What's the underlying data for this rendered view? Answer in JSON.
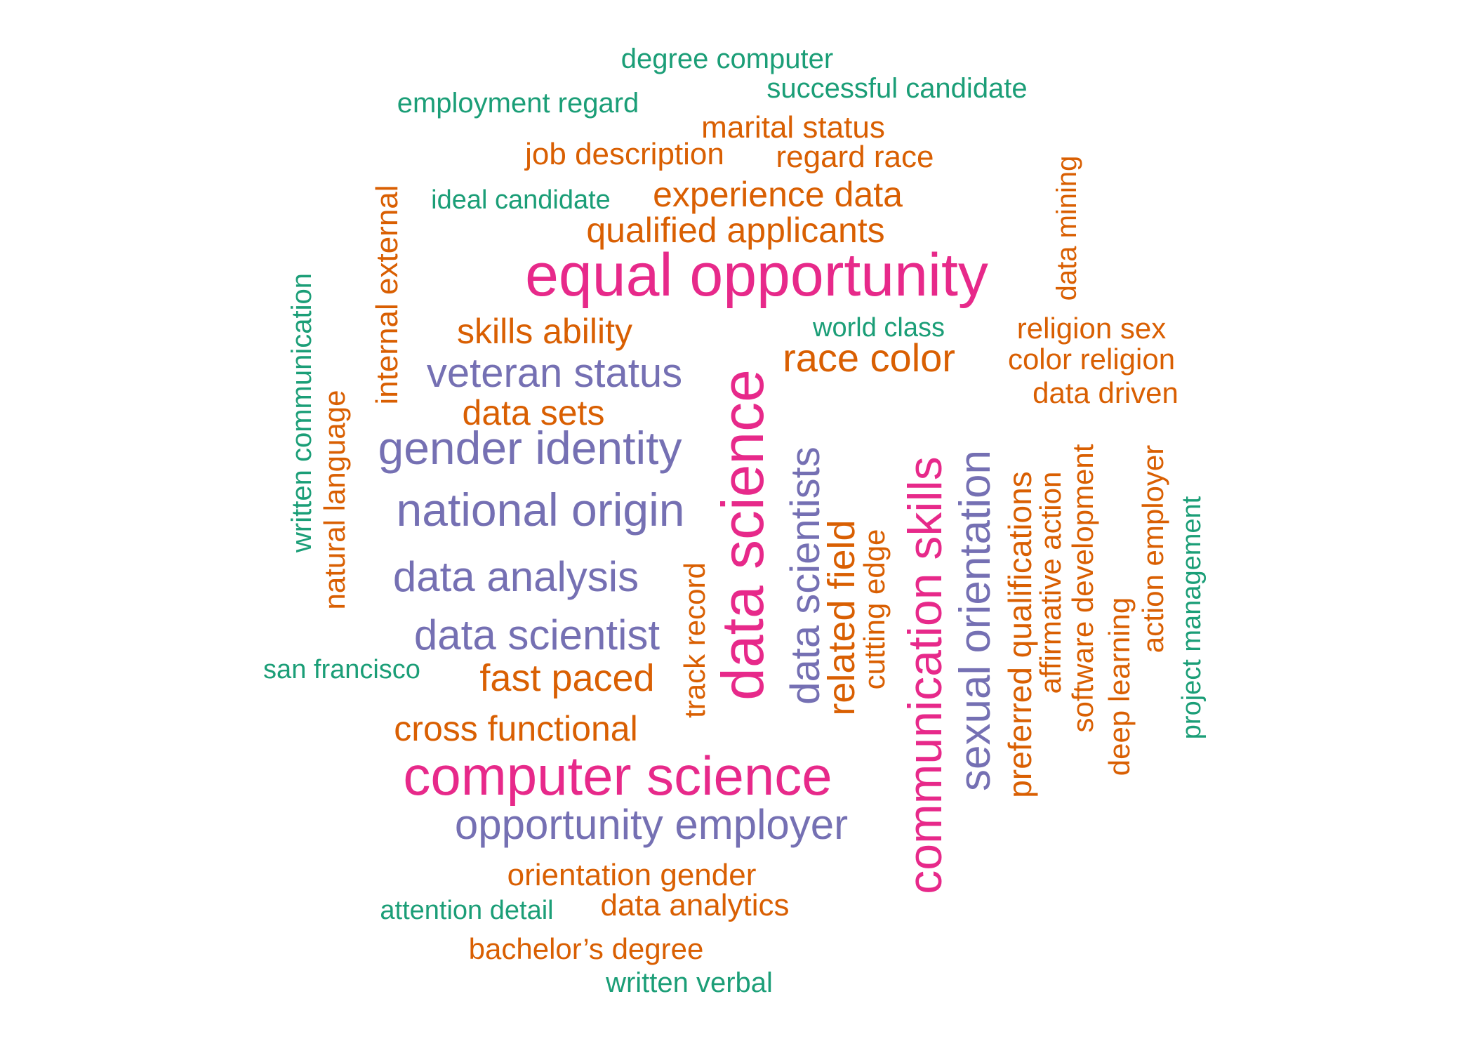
{
  "palette": {
    "tier1": "#e7298a",
    "tier2": "#7570b3",
    "tier3": "#d95f02",
    "tier4": "#1b9e77"
  },
  "words": [
    {
      "text": "equal opportunity",
      "tier": "tier1",
      "orientation": "horizontal"
    },
    {
      "text": "data science",
      "tier": "tier1",
      "orientation": "vertical"
    },
    {
      "text": "computer science",
      "tier": "tier1",
      "orientation": "horizontal"
    },
    {
      "text": "communication skills",
      "tier": "tier1",
      "orientation": "vertical"
    },
    {
      "text": "veteran status",
      "tier": "tier2",
      "orientation": "horizontal"
    },
    {
      "text": "gender identity",
      "tier": "tier2",
      "orientation": "horizontal"
    },
    {
      "text": "national origin",
      "tier": "tier2",
      "orientation": "horizontal"
    },
    {
      "text": "data analysis",
      "tier": "tier2",
      "orientation": "horizontal"
    },
    {
      "text": "data scientist",
      "tier": "tier2",
      "orientation": "horizontal"
    },
    {
      "text": "opportunity employer",
      "tier": "tier2",
      "orientation": "horizontal"
    },
    {
      "text": "data scientists",
      "tier": "tier2",
      "orientation": "vertical"
    },
    {
      "text": "sexual orientation",
      "tier": "tier2",
      "orientation": "vertical"
    },
    {
      "text": "marital status",
      "tier": "tier3",
      "orientation": "horizontal"
    },
    {
      "text": "job description",
      "tier": "tier3",
      "orientation": "horizontal"
    },
    {
      "text": "regard race",
      "tier": "tier3",
      "orientation": "horizontal"
    },
    {
      "text": "experience data",
      "tier": "tier3",
      "orientation": "horizontal"
    },
    {
      "text": "qualified applicants",
      "tier": "tier3",
      "orientation": "horizontal"
    },
    {
      "text": "skills ability",
      "tier": "tier3",
      "orientation": "horizontal"
    },
    {
      "text": "race color",
      "tier": "tier3",
      "orientation": "horizontal"
    },
    {
      "text": "religion sex",
      "tier": "tier3",
      "orientation": "horizontal"
    },
    {
      "text": "color religion",
      "tier": "tier3",
      "orientation": "horizontal"
    },
    {
      "text": "data driven",
      "tier": "tier3",
      "orientation": "horizontal"
    },
    {
      "text": "data sets",
      "tier": "tier3",
      "orientation": "horizontal"
    },
    {
      "text": "fast paced",
      "tier": "tier3",
      "orientation": "horizontal"
    },
    {
      "text": "cross functional",
      "tier": "tier3",
      "orientation": "horizontal"
    },
    {
      "text": "orientation gender",
      "tier": "tier3",
      "orientation": "horizontal"
    },
    {
      "text": "data analytics",
      "tier": "tier3",
      "orientation": "horizontal"
    },
    {
      "text": "bachelor’s degree",
      "tier": "tier3",
      "orientation": "horizontal"
    },
    {
      "text": "internal external",
      "tier": "tier3",
      "orientation": "vertical"
    },
    {
      "text": "natural language",
      "tier": "tier3",
      "orientation": "vertical"
    },
    {
      "text": "data mining",
      "tier": "tier3",
      "orientation": "vertical"
    },
    {
      "text": "track record",
      "tier": "tier3",
      "orientation": "vertical"
    },
    {
      "text": "related field",
      "tier": "tier3",
      "orientation": "vertical"
    },
    {
      "text": "cutting edge",
      "tier": "tier3",
      "orientation": "vertical"
    },
    {
      "text": "preferred qualifications",
      "tier": "tier3",
      "orientation": "vertical"
    },
    {
      "text": "affirmative action",
      "tier": "tier3",
      "orientation": "vertical"
    },
    {
      "text": "software development",
      "tier": "tier3",
      "orientation": "vertical"
    },
    {
      "text": "deep learning",
      "tier": "tier3",
      "orientation": "vertical"
    },
    {
      "text": "action employer",
      "tier": "tier3",
      "orientation": "vertical"
    },
    {
      "text": "degree computer",
      "tier": "tier4",
      "orientation": "horizontal"
    },
    {
      "text": "successful candidate",
      "tier": "tier4",
      "orientation": "horizontal"
    },
    {
      "text": "employment regard",
      "tier": "tier4",
      "orientation": "horizontal"
    },
    {
      "text": "ideal candidate",
      "tier": "tier4",
      "orientation": "horizontal"
    },
    {
      "text": "world class",
      "tier": "tier4",
      "orientation": "horizontal"
    },
    {
      "text": "san francisco",
      "tier": "tier4",
      "orientation": "horizontal"
    },
    {
      "text": "attention detail",
      "tier": "tier4",
      "orientation": "horizontal"
    },
    {
      "text": "written verbal",
      "tier": "tier4",
      "orientation": "horizontal"
    },
    {
      "text": "written communication",
      "tier": "tier4",
      "orientation": "vertical"
    },
    {
      "text": "project management",
      "tier": "tier4",
      "orientation": "vertical"
    }
  ]
}
